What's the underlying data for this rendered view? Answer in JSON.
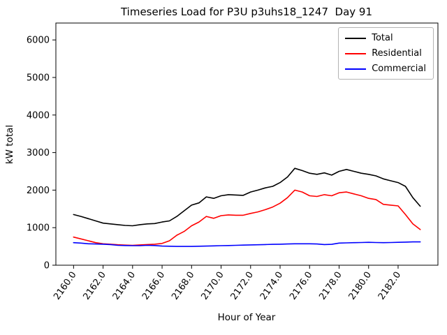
{
  "chart_data": {
    "type": "line",
    "title": "Timeseries Load for P3U p3uhs18_1247  Day 91",
    "xlabel": "Hour of Year",
    "ylabel": "kW total",
    "xlim": [
      2158.8,
      2184.7
    ],
    "ylim": [
      0,
      6450
    ],
    "grid": false,
    "legend_position": "upper right",
    "xticks": [
      2160,
      2162,
      2164,
      2166,
      2168,
      2170,
      2172,
      2174,
      2176,
      2178,
      2180,
      2182
    ],
    "xtick_labels": [
      "2160.0",
      "2162.0",
      "2164.0",
      "2166.0",
      "2168.0",
      "2170.0",
      "2172.0",
      "2174.0",
      "2176.0",
      "2178.0",
      "2180.0",
      "2182.0"
    ],
    "yticks": [
      0,
      1000,
      2000,
      3000,
      4000,
      5000,
      6000
    ],
    "ytick_labels": [
      "0",
      "1000",
      "2000",
      "3000",
      "4000",
      "5000",
      "6000"
    ],
    "x": [
      2160.0,
      2160.5,
      2161.0,
      2161.5,
      2162.0,
      2162.5,
      2163.0,
      2163.5,
      2164.0,
      2164.5,
      2165.0,
      2165.5,
      2166.0,
      2166.5,
      2167.0,
      2167.5,
      2168.0,
      2168.5,
      2169.0,
      2169.5,
      2170.0,
      2170.5,
      2171.0,
      2171.5,
      2172.0,
      2172.5,
      2173.0,
      2173.5,
      2174.0,
      2174.5,
      2175.0,
      2175.5,
      2176.0,
      2176.5,
      2177.0,
      2177.5,
      2178.0,
      2178.5,
      2179.0,
      2179.5,
      2180.0,
      2180.5,
      2181.0,
      2181.5,
      2182.0,
      2182.5,
      2183.0,
      2183.5
    ],
    "series": [
      {
        "name": "Total",
        "color": "#000000",
        "values": [
          1350,
          1300,
          1240,
          1180,
          1120,
          1100,
          1080,
          1060,
          1050,
          1080,
          1100,
          1110,
          1150,
          1180,
          1300,
          1450,
          1600,
          1660,
          1820,
          1780,
          1850,
          1880,
          1870,
          1860,
          1950,
          2000,
          2060,
          2100,
          2200,
          2350,
          2580,
          2520,
          2450,
          2420,
          2460,
          2400,
          2500,
          2550,
          2500,
          2450,
          2420,
          2380,
          2300,
          2250,
          2200,
          2100,
          1800,
          1570
        ]
      },
      {
        "name": "Residential",
        "color": "#ff0000",
        "values": [
          750,
          700,
          650,
          600,
          570,
          560,
          545,
          535,
          530,
          540,
          550,
          560,
          580,
          650,
          800,
          900,
          1050,
          1150,
          1300,
          1250,
          1320,
          1340,
          1330,
          1330,
          1380,
          1420,
          1480,
          1550,
          1650,
          1800,
          2000,
          1950,
          1850,
          1830,
          1880,
          1850,
          1930,
          1950,
          1900,
          1850,
          1780,
          1750,
          1620,
          1600,
          1580,
          1350,
          1100,
          950
        ]
      },
      {
        "name": "Commercial",
        "color": "#0000ff",
        "values": [
          600,
          590,
          570,
          565,
          560,
          550,
          530,
          525,
          520,
          520,
          530,
          525,
          510,
          505,
          500,
          500,
          500,
          505,
          510,
          515,
          520,
          525,
          530,
          535,
          540,
          545,
          550,
          555,
          560,
          565,
          570,
          570,
          570,
          565,
          550,
          555,
          590,
          595,
          600,
          605,
          610,
          605,
          600,
          605,
          610,
          615,
          620,
          620
        ]
      }
    ]
  }
}
